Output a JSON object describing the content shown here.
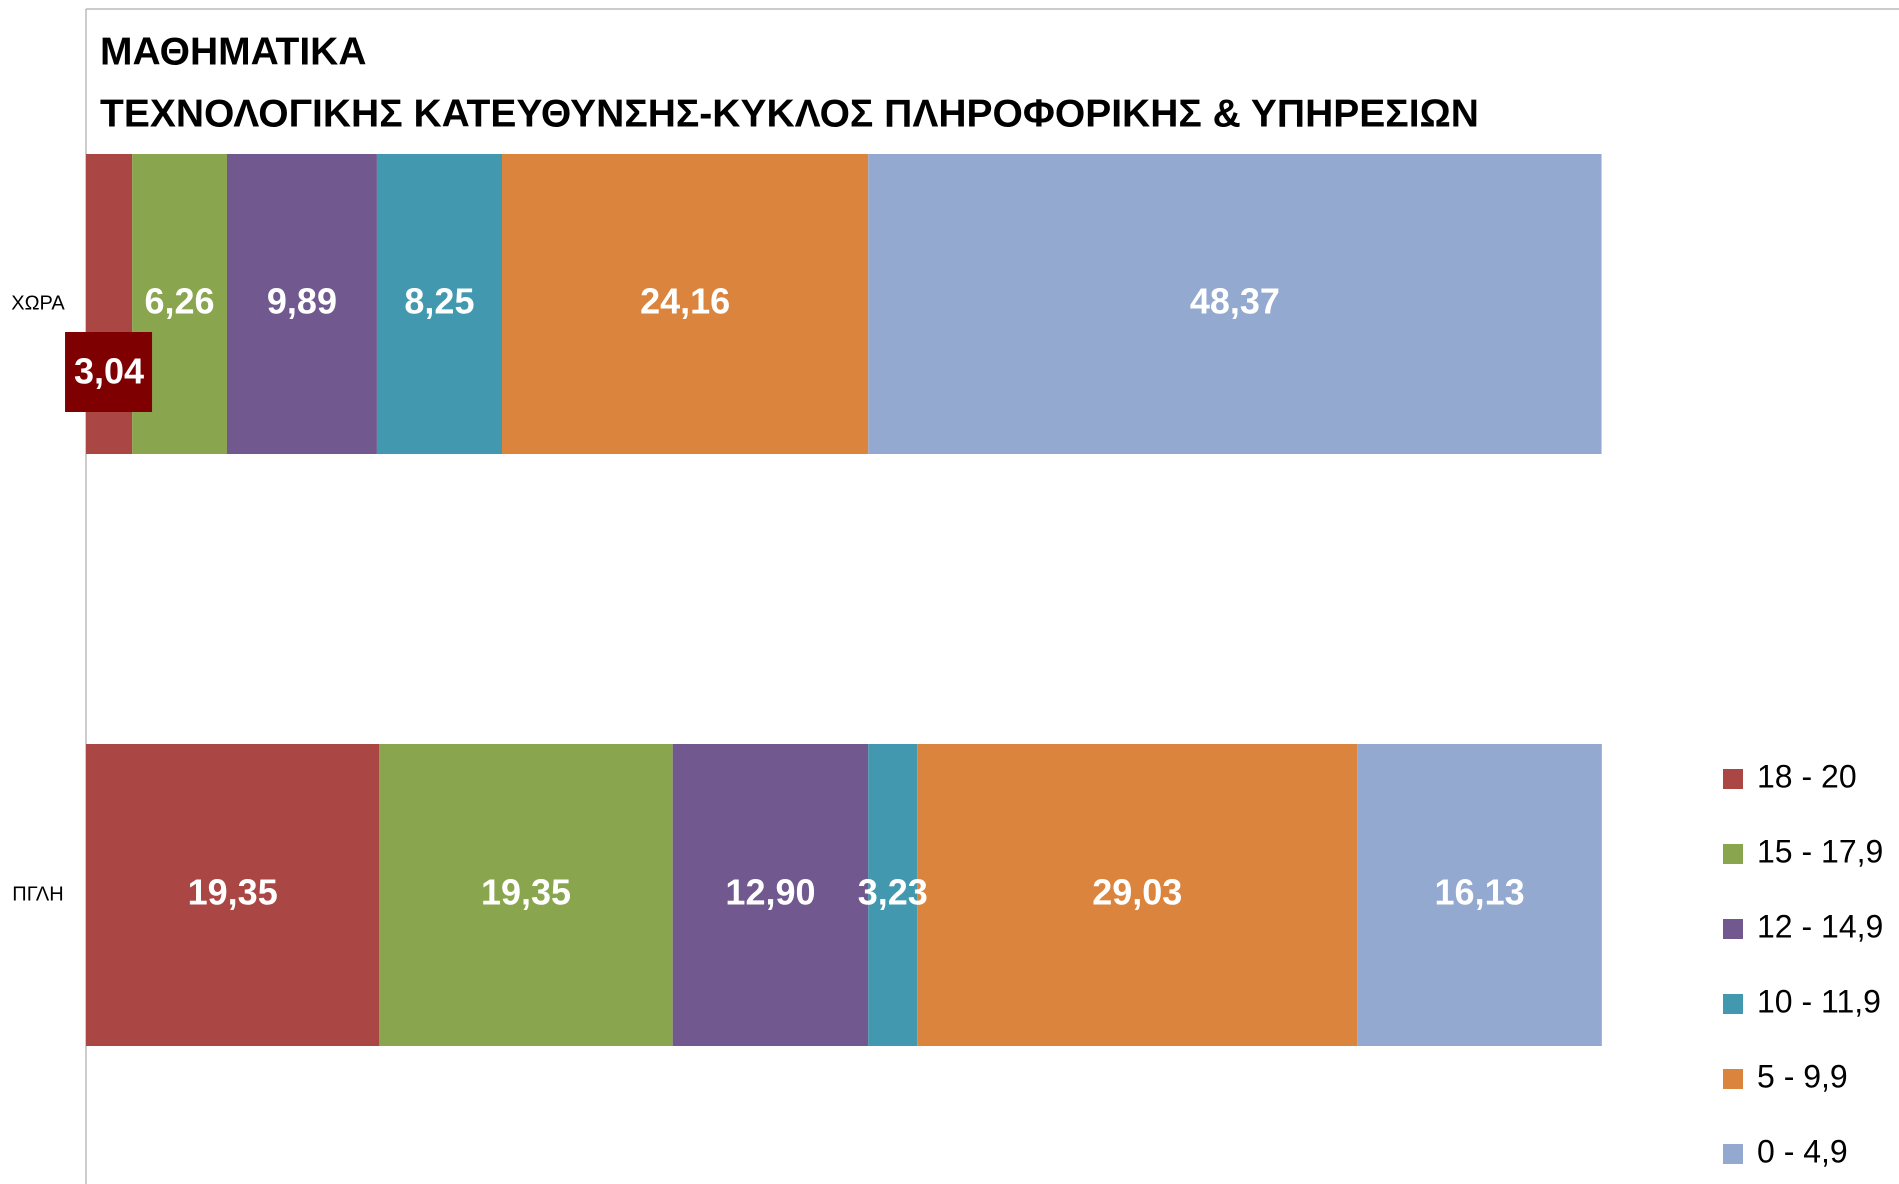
{
  "chart_data": {
    "type": "stacked_bar_horizontal",
    "title": "ΜΑΘΗΜΑΤΙΚΑ",
    "subtitle": "ΤΕΧΝΟΛΟΓΙΚΗΣ ΚΑΤΕΥΘΥΝΣΗΣ-ΚΥΚΛΟΣ ΠΛΗΡΟΦΟΡΙΚΗΣ & ΥΠΗΡΕΣΙΩΝ",
    "categories": [
      "ΧΩΡΑ",
      "ΠΓΛΗ"
    ],
    "xlim": [
      0,
      100
    ],
    "legend": "right",
    "series": [
      {
        "name": "18 - 20",
        "color": "#aa4643",
        "values": [
          3.04,
          19.35
        ],
        "value_labels": [
          "3,04",
          "19,35"
        ]
      },
      {
        "name": "15 - 17,9",
        "color": "#89a54e",
        "values": [
          6.26,
          19.35
        ],
        "value_labels": [
          "6,26",
          "19,35"
        ]
      },
      {
        "name": "12 - 14,9",
        "color": "#71588f",
        "values": [
          9.89,
          12.9
        ],
        "value_labels": [
          "9,89",
          "12,90"
        ]
      },
      {
        "name": "10 - 11,9",
        "color": "#4198af",
        "values": [
          8.25,
          3.23
        ],
        "value_labels": [
          "8,25",
          "3,23"
        ]
      },
      {
        "name": "5 - 9,9",
        "color": "#db843d",
        "values": [
          24.16,
          29.03
        ],
        "value_labels": [
          "24,16",
          "29,03"
        ]
      },
      {
        "name": "0 - 4,9",
        "color": "#93a9cf",
        "values": [
          48.37,
          16.13
        ],
        "value_labels": [
          "48,37",
          "16,13"
        ]
      }
    ]
  }
}
